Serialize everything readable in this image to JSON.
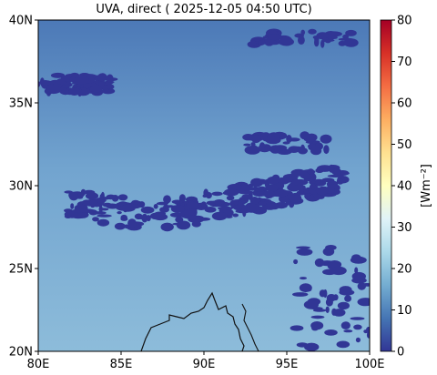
{
  "chart_data": {
    "type": "heatmap",
    "title": "UVA, direct ( 2025-12-05 04:50 UTC)",
    "xlabel": "",
    "ylabel": "",
    "x_ticks": [
      {
        "value": 80,
        "label": "80E"
      },
      {
        "value": 85,
        "label": "85E"
      },
      {
        "value": 90,
        "label": "90E"
      },
      {
        "value": 95,
        "label": "95E"
      },
      {
        "value": 100,
        "label": "100E"
      }
    ],
    "y_ticks": [
      {
        "value": 20,
        "label": "20N"
      },
      {
        "value": 25,
        "label": "25N"
      },
      {
        "value": 30,
        "label": "30N"
      },
      {
        "value": 35,
        "label": "35N"
      },
      {
        "value": 40,
        "label": "40N"
      }
    ],
    "xlim": [
      80,
      100
    ],
    "ylim": [
      20,
      40
    ],
    "colorbar": {
      "label": "[Wm⁻²]",
      "range": [
        0,
        80
      ],
      "ticks": [
        0,
        10,
        20,
        30,
        40,
        50,
        60,
        70,
        80
      ],
      "colormap": [
        "#313695",
        "#4575b4",
        "#74add1",
        "#abd9e9",
        "#e0f3f8",
        "#ffffbf",
        "#fee090",
        "#fdae61",
        "#f46d43",
        "#d73027",
        "#a50026"
      ]
    },
    "field": {
      "background_value_south": 24,
      "background_value_north": 9,
      "low_value_regions": [
        {
          "name": "himalaya-band",
          "lon_range": [
            81.8,
            98.5
          ],
          "lat_range": [
            27.6,
            31.0
          ],
          "value": 0
        },
        {
          "name": "northwest-patch",
          "lon_range": [
            80.0,
            84.4
          ],
          "lat_range": [
            35.6,
            36.7
          ],
          "value": 0
        },
        {
          "name": "northeast-clusters",
          "lon_range": [
            93.0,
            99.0
          ],
          "lat_range": [
            38.5,
            39.3
          ],
          "value": 0
        },
        {
          "name": "central-east-clusters",
          "lon_range": [
            92.2,
            97.5
          ],
          "lat_range": [
            32.0,
            33.2
          ],
          "value": 0
        },
        {
          "name": "southeast-coast",
          "lon_range": [
            95.5,
            100.0
          ],
          "lat_range": [
            20.0,
            26.5
          ],
          "value": 0
        }
      ]
    },
    "overlay": "coastline"
  }
}
